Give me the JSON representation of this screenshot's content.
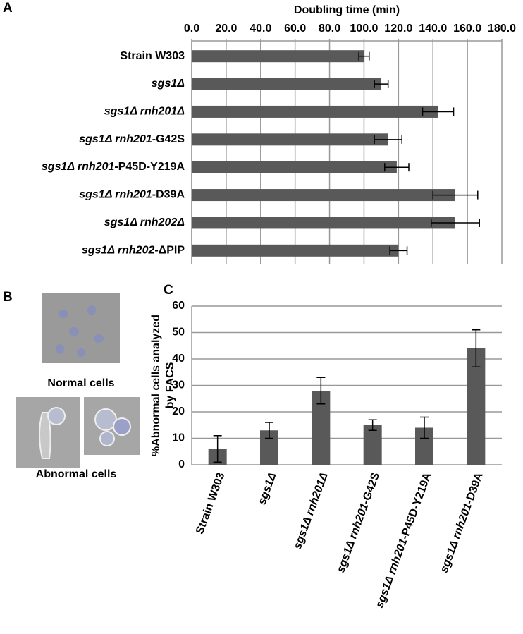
{
  "panel_labels": [
    "A",
    "B",
    "C"
  ],
  "panel_b": {
    "captions": [
      "Normal cells",
      "Abnormal cells"
    ]
  },
  "chart_data": [
    {
      "type": "hbar",
      "title": "Doubling time (min)",
      "categories": [
        "Strain W303",
        "sgs1Δ",
        "sgs1Δ rnh201Δ",
        "sgs1Δ rnh201-G42S",
        "sgs1Δ rnh201-P45D-Y219A",
        "sgs1Δ rnh201-D39A",
        "sgs1Δ rnh202Δ",
        "sgs1Δ rnh202-ΔPIP"
      ],
      "values": [
        100,
        110,
        143,
        114,
        119,
        153,
        153,
        120
      ],
      "errors": [
        3,
        4,
        9,
        8,
        7,
        13,
        14,
        5
      ],
      "color": "#595959",
      "xlim": [
        0,
        180
      ],
      "xticks": [
        {
          "value": 0,
          "label": "0.0"
        },
        {
          "value": 20,
          "label": "20.0"
        },
        {
          "value": 40,
          "label": "40.0"
        },
        {
          "value": 60,
          "label": "60.0"
        },
        {
          "value": 80,
          "label": "80.0"
        },
        {
          "value": 100,
          "label": "100.0"
        },
        {
          "value": 120,
          "label": "120.0"
        },
        {
          "value": 140,
          "label": "140.0"
        },
        {
          "value": 160,
          "label": "160.0"
        },
        {
          "value": 180,
          "label": "180.0"
        }
      ],
      "grid": true
    },
    {
      "type": "bar",
      "ylabel": [
        "%Abnormal cells analyzed",
        "by FACS"
      ],
      "categories": [
        "Strain W303",
        "sgs1Δ",
        "sgs1Δ rnh201Δ",
        "sgs1Δ rnh201-G42S",
        "sgs1Δ rnh201-P45D-Y219A",
        "sgs1Δ rnh201-D39A"
      ],
      "values": [
        6,
        13,
        28,
        15,
        14,
        44
      ],
      "errors": [
        5,
        3,
        5,
        2,
        4,
        7
      ],
      "color": "#595959",
      "ylim": [
        0,
        60
      ],
      "yticks": [
        0,
        10,
        20,
        30,
        40,
        50,
        60
      ],
      "grid": true
    }
  ]
}
